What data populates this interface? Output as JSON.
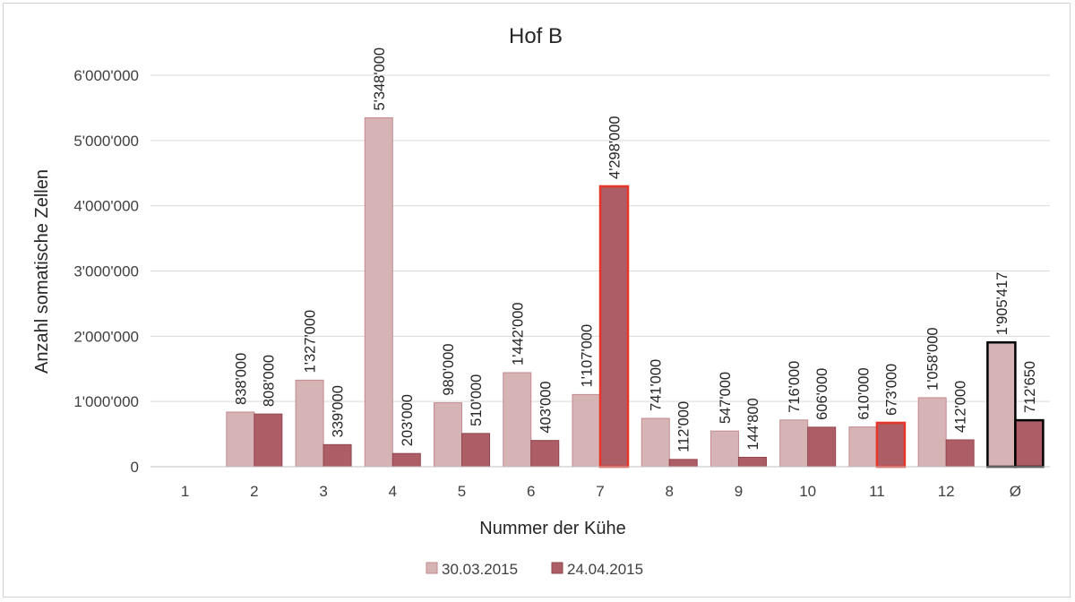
{
  "chart_data": {
    "type": "bar",
    "title": "Hof B",
    "xlabel": "Nummer der Kühe",
    "ylabel": "Anzahl somatische Zellen",
    "ylim": [
      0,
      6000000
    ],
    "yticks": [
      "0",
      "1'000'000",
      "2'000'000",
      "3'000'000",
      "4'000'000",
      "5'000'000",
      "6'000'000"
    ],
    "grid": true,
    "legend_position": "bottom",
    "categories": [
      "1",
      "2",
      "3",
      "4",
      "5",
      "6",
      "7",
      "8",
      "9",
      "10",
      "11",
      "12",
      "Ø"
    ],
    "series": [
      {
        "name": "30.03.2015",
        "color": "#d6b3b5",
        "values": [
          null,
          838000,
          1327000,
          5348000,
          980000,
          1442000,
          1107000,
          741000,
          547000,
          716000,
          610000,
          1058000,
          1905417
        ],
        "labels": [
          "",
          "838'000",
          "1'327'000",
          "5'348'000",
          "980'000",
          "1'442'000",
          "1'107'000",
          "741'000",
          "547'000",
          "716'000",
          "610'000",
          "1'058'000",
          "1'905'417"
        ],
        "highlight": [
          null,
          null,
          null,
          null,
          null,
          null,
          null,
          null,
          null,
          null,
          null,
          null,
          "#000000"
        ]
      },
      {
        "name": "24.04.2015",
        "color": "#ad5d66",
        "values": [
          null,
          808000,
          339000,
          203000,
          510000,
          403000,
          4298000,
          112000,
          144800,
          606000,
          673000,
          412000,
          712650
        ],
        "labels": [
          "",
          "808'000",
          "339'000",
          "203'000",
          "510'000",
          "403'000",
          "4'298'000",
          "112'000",
          "144'800",
          "606'000",
          "673'000",
          "412'000",
          "712'650"
        ],
        "highlight": [
          null,
          null,
          null,
          null,
          null,
          null,
          "#e8352a",
          null,
          null,
          null,
          "#e8352a",
          null,
          "#000000"
        ]
      }
    ]
  }
}
